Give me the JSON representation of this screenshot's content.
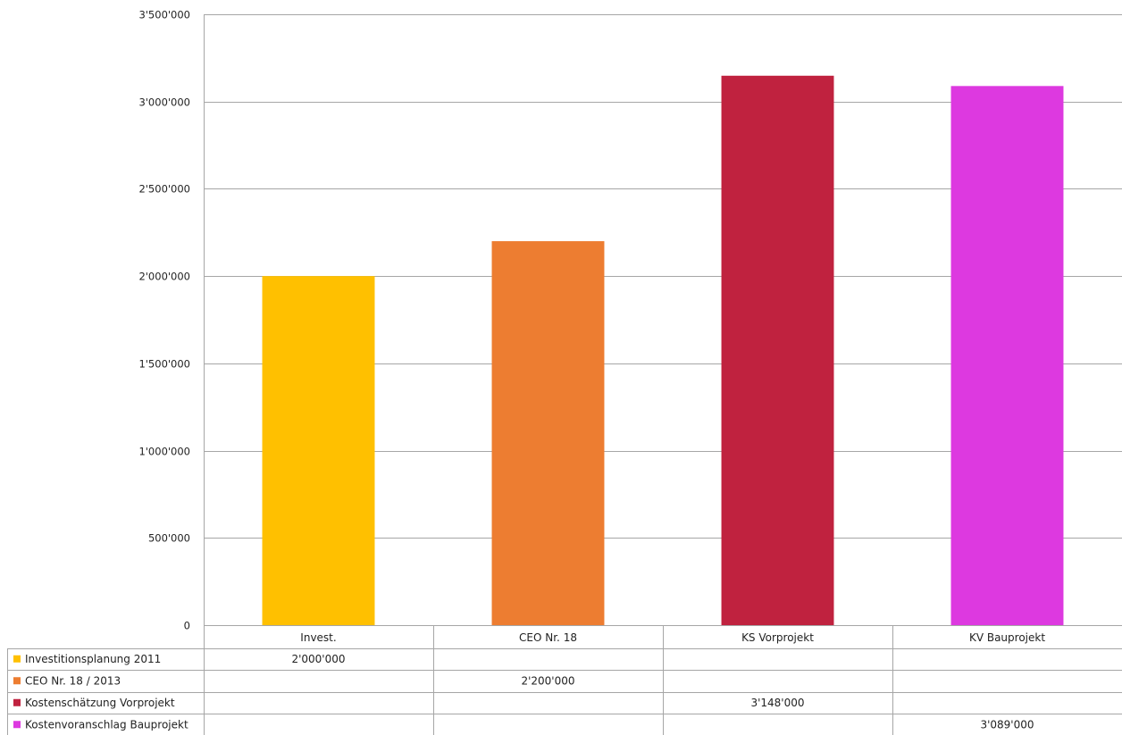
{
  "chart_data": {
    "type": "bar",
    "title": "",
    "xlabel": "",
    "ylabel": "",
    "ylim": [
      0,
      3500000
    ],
    "y_ticks": [
      0,
      500000,
      1000000,
      1500000,
      2000000,
      2500000,
      3000000,
      3500000
    ],
    "y_tick_labels": [
      "0",
      "500'000",
      "1'000'000",
      "1'500'000",
      "2'000'000",
      "2'500'000",
      "3'000'000",
      "3'500'000"
    ],
    "grid": true,
    "legend": "data-table-left",
    "categories": [
      "Invest.",
      "CEO Nr. 18",
      "KS Vorprojekt",
      "KV Bauprojekt"
    ],
    "series": [
      {
        "name": "Investitionsplanung 2011",
        "color": "#FFC000",
        "values": [
          2000000,
          null,
          null,
          null
        ],
        "labels": [
          "2'000'000",
          "",
          "",
          ""
        ]
      },
      {
        "name": "CEO Nr. 18 / 2013",
        "color": "#ED7D31",
        "values": [
          null,
          2200000,
          null,
          null
        ],
        "labels": [
          "",
          "2'200'000",
          "",
          ""
        ]
      },
      {
        "name": "Kostenschätzung  Vorprojekt",
        "color": "#C0223F",
        "values": [
          null,
          null,
          3148000,
          null
        ],
        "labels": [
          "",
          "",
          "3'148'000",
          ""
        ]
      },
      {
        "name": "Kostenvoranschlag Bauprojekt",
        "color": "#DD39E0",
        "values": [
          null,
          null,
          null,
          3089000
        ],
        "labels": [
          "",
          "",
          "",
          "3'089'000"
        ]
      }
    ]
  }
}
